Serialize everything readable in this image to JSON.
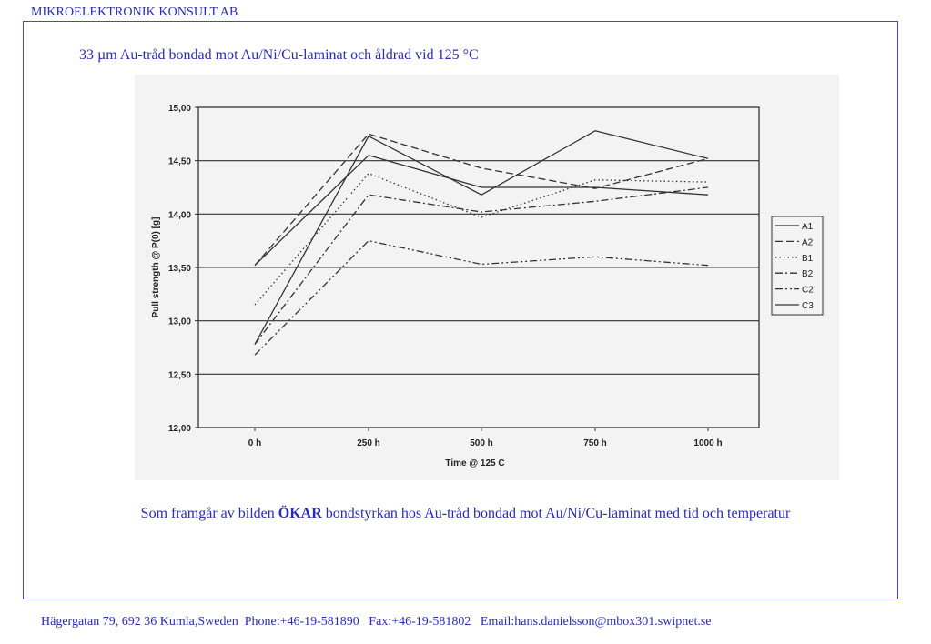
{
  "header": {
    "company": "MIKROELEKTRONIK KONSULT AB"
  },
  "slide": {
    "title": "33 µm Au-tråd bondad mot Au/Ni/Cu-laminat och åldrad vid 125 °C",
    "conclusion_pre": "Som framgår av bilden ",
    "conclusion_bold": "ÖKAR",
    "conclusion_post": " bondstyrkan hos Au-tråd bondad mot Au/Ni/Cu-laminat med tid och temperatur"
  },
  "footer": {
    "text": "Hägergatan 79, 692 36 Kumla,Sweden  Phone:+46-19-581890   Fax:+46-19-581802   Email:hans.danielsson@mbox301.swipnet.se"
  },
  "chart_data": {
    "type": "line",
    "categories": [
      "0 h",
      "250 h",
      "500 h",
      "750 h",
      "1000 h"
    ],
    "xlabel": "Time @ 125 C",
    "ylabel": "Pull strength @ P(0) [g]",
    "ylim": [
      12.0,
      15.0
    ],
    "yticks": [
      "12,00",
      "12,50",
      "13,00",
      "13,50",
      "14,00",
      "14,50",
      "15,00"
    ],
    "grid": "horizontal",
    "legend_position": "right",
    "series": [
      {
        "name": "A1",
        "dash": "solid",
        "values": [
          12.78,
          14.73,
          14.18,
          14.78,
          14.52
        ]
      },
      {
        "name": "A2",
        "dash": "dashed",
        "values": [
          13.52,
          14.75,
          14.43,
          14.24,
          14.52
        ]
      },
      {
        "name": "B1",
        "dash": "dotted",
        "values": [
          13.15,
          14.38,
          13.97,
          14.32,
          14.3
        ]
      },
      {
        "name": "B2",
        "dash": "dashdot",
        "values": [
          12.78,
          14.18,
          14.02,
          14.12,
          14.25
        ]
      },
      {
        "name": "C2",
        "dash": "dashdotdot",
        "values": [
          12.68,
          13.75,
          13.53,
          13.6,
          13.52
        ]
      },
      {
        "name": "C3",
        "dash": "solid",
        "values": [
          13.52,
          14.55,
          14.25,
          14.25,
          14.18
        ]
      }
    ]
  }
}
